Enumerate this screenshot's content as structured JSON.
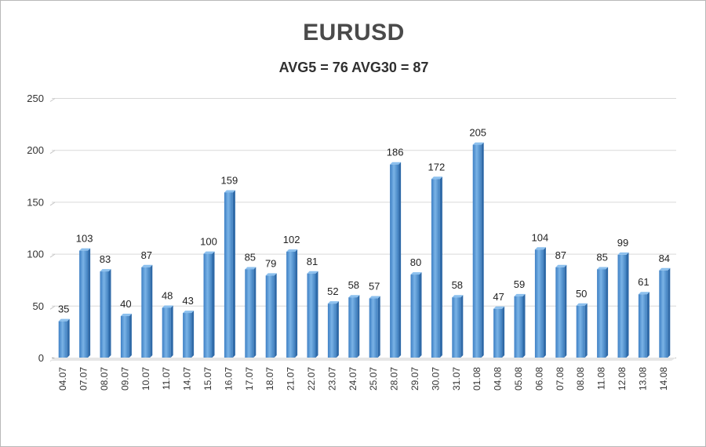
{
  "chart_data": {
    "type": "bar",
    "title": "EURUSD",
    "subtitle": "AVG5 = 76 AVG30 = 87",
    "xlabel": "",
    "ylabel": "",
    "ylim": [
      0,
      250
    ],
    "yticks": [
      0,
      50,
      100,
      150,
      200,
      250
    ],
    "grid": true,
    "legend": "none",
    "bar_color": "#5b9bd5",
    "categories": [
      "04.07",
      "07.07",
      "08.07",
      "09.07",
      "10.07",
      "11.07",
      "14.07",
      "15.07",
      "16.07",
      "17.07",
      "18.07",
      "21.07",
      "22.07",
      "23.07",
      "24.07",
      "25.07",
      "28.07",
      "29.07",
      "30.07",
      "31.07",
      "01.08",
      "04.08",
      "05.08",
      "06.08",
      "07.08",
      "08.08",
      "11.08",
      "12.08",
      "13.08",
      "14.08"
    ],
    "values": [
      35,
      103,
      83,
      40,
      87,
      48,
      43,
      100,
      159,
      85,
      79,
      102,
      81,
      52,
      58,
      57,
      186,
      80,
      172,
      58,
      205,
      47,
      59,
      104,
      87,
      50,
      85,
      99,
      61,
      84
    ]
  }
}
